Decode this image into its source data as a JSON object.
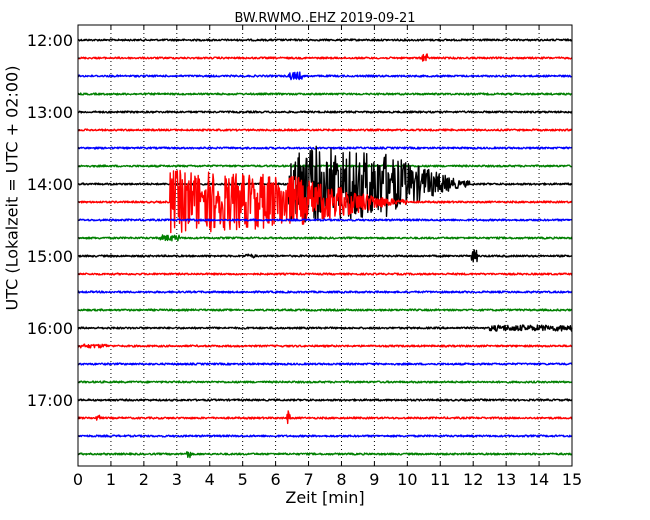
{
  "chart_data": {
    "type": "line",
    "title": "BW.RWMO..EHZ 2019-09-21",
    "xlabel": "Zeit  [min]",
    "ylabel": "UTC (Lokalzeit = UTC + 02:00)",
    "xlim": [
      0,
      15
    ],
    "x_ticks": [
      "0",
      "1",
      "2",
      "3",
      "4",
      "5",
      "6",
      "7",
      "8",
      "9",
      "10",
      "11",
      "12",
      "13",
      "14",
      "15"
    ],
    "y_tick_labels": [
      "12:00",
      "13:00",
      "14:00",
      "15:00",
      "16:00",
      "17:00"
    ],
    "grid": "x dotted",
    "trace_colors": [
      "#000000",
      "#ff0000",
      "#0000ff",
      "#008000"
    ],
    "series": [
      {
        "start": "12:00",
        "color": "#000000"
      },
      {
        "start": "12:15",
        "color": "#ff0000",
        "events": [
          {
            "x": 10.45,
            "amp": 5,
            "dur": 0.15
          }
        ]
      },
      {
        "start": "12:30",
        "color": "#0000ff",
        "events": [
          {
            "x": 6.4,
            "amp": 4,
            "dur": 0.4
          }
        ]
      },
      {
        "start": "12:45",
        "color": "#008000"
      },
      {
        "start": "13:00",
        "color": "#000000"
      },
      {
        "start": "13:15",
        "color": "#ff0000"
      },
      {
        "start": "13:30",
        "color": "#0000ff"
      },
      {
        "start": "13:45",
        "color": "#008000"
      },
      {
        "start": "14:00",
        "color": "#000000",
        "events": [
          {
            "x": 6.4,
            "amp": 40,
            "dur": 5.5,
            "decay": true
          }
        ]
      },
      {
        "start": "14:15",
        "color": "#ff0000",
        "events": [
          {
            "x": 2.8,
            "amp": 32,
            "dur": 7.2,
            "decay": true
          }
        ]
      },
      {
        "start": "14:30",
        "color": "#0000ff"
      },
      {
        "start": "14:45",
        "color": "#008000",
        "events": [
          {
            "x": 2.5,
            "amp": 3,
            "dur": 0.6
          }
        ]
      },
      {
        "start": "15:00",
        "color": "#000000",
        "events": [
          {
            "x": 11.95,
            "amp": 6,
            "dur": 0.2
          },
          {
            "x": 5.1,
            "amp": 2,
            "dur": 0.3
          }
        ]
      },
      {
        "start": "15:15",
        "color": "#ff0000"
      },
      {
        "start": "15:30",
        "color": "#0000ff"
      },
      {
        "start": "15:45",
        "color": "#008000"
      },
      {
        "start": "16:00",
        "color": "#000000",
        "events": [
          {
            "x": 12.5,
            "amp": 3,
            "dur": 2.5
          }
        ]
      },
      {
        "start": "16:15",
        "color": "#ff0000",
        "events": [
          {
            "x": 0.0,
            "amp": 2,
            "dur": 0.9
          }
        ]
      },
      {
        "start": "16:30",
        "color": "#0000ff"
      },
      {
        "start": "16:45",
        "color": "#008000"
      },
      {
        "start": "17:00",
        "color": "#000000"
      },
      {
        "start": "17:15",
        "color": "#ff0000",
        "events": [
          {
            "x": 6.35,
            "amp": 8,
            "dur": 0.1
          },
          {
            "x": 0.55,
            "amp": 3,
            "dur": 0.1
          }
        ]
      },
      {
        "start": "17:30",
        "color": "#0000ff"
      },
      {
        "start": "17:45",
        "color": "#008000",
        "events": [
          {
            "x": 3.3,
            "amp": 4,
            "dur": 0.15
          }
        ]
      }
    ]
  }
}
